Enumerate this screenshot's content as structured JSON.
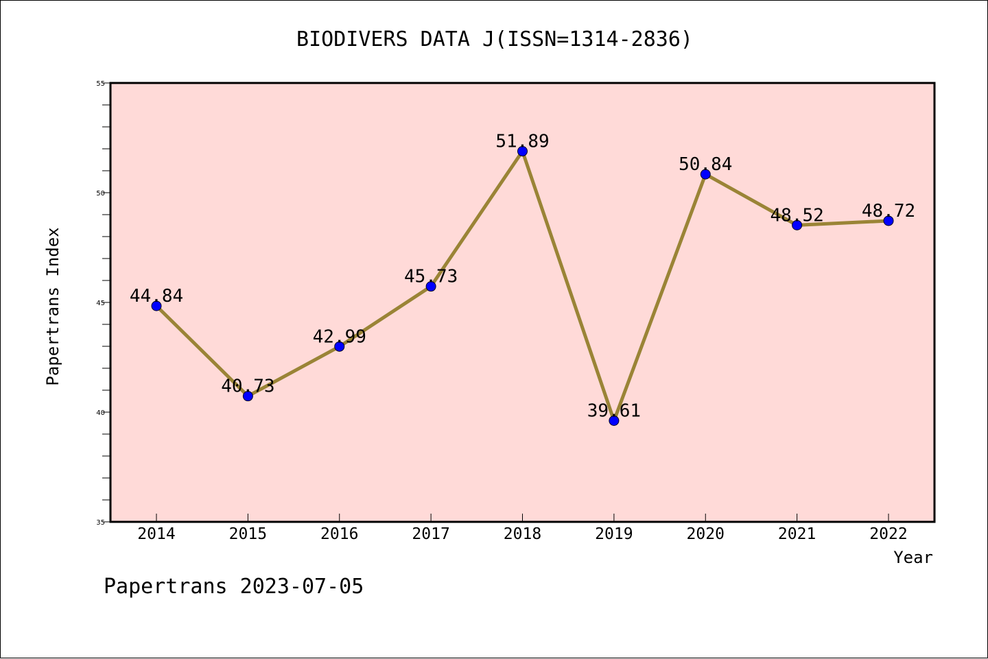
{
  "chart_data": {
    "type": "line",
    "title": "BIODIVERS DATA J(ISSN=1314-2836)",
    "xlabel": "Year",
    "ylabel": "Papertrans Index",
    "categories": [
      "2014",
      "2015",
      "2016",
      "2017",
      "2018",
      "2019",
      "2020",
      "2021",
      "2022"
    ],
    "y_ticks": [
      35,
      40,
      45,
      50,
      55
    ],
    "ylim": [
      35,
      55
    ],
    "series": [
      {
        "values": [
          44.84,
          40.73,
          42.99,
          45.73,
          51.89,
          39.61,
          50.84,
          48.52,
          48.72
        ],
        "labels": [
          "44.84",
          "40.73",
          "42.99",
          "45.73",
          "51.89",
          "39.61",
          "50.84",
          "48.52",
          "48.72"
        ]
      }
    ],
    "grid": false,
    "colors": {
      "plot_background": "#ffdad8",
      "line": "#9a8436",
      "marker": "#0000ff",
      "axis": "#000000"
    },
    "footer": "Papertrans 2023-07-05"
  }
}
